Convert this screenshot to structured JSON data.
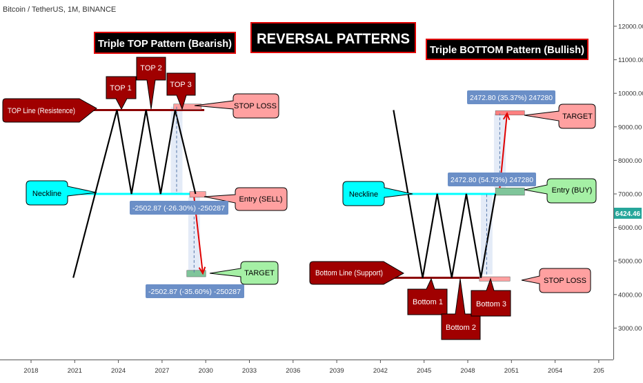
{
  "symbol": "Bitcoin / TetherUS, 1M, BINANCE",
  "last_price": "6424.46",
  "colors": {
    "accent_teal": "#26a69a",
    "dark_red": "#8b0000",
    "pink": "#ffa0a0",
    "light_green": "#a5f0a5",
    "cyan": "#00ffff",
    "label_blue": "#6b8fc7",
    "black": "#000000"
  },
  "chart_data": {
    "type": "line",
    "x_ticks": [
      "2018",
      "2021",
      "2024",
      "2027",
      "2030",
      "2033",
      "2036",
      "2039",
      "2042",
      "2045",
      "2048",
      "2051",
      "2054",
      "205"
    ],
    "y_ticks": [
      "12000.00",
      "11000.00",
      "10000.00",
      "9000.00",
      "8000.00",
      "7000.00",
      "6000.00",
      "5000.00",
      "4000.00",
      "3000.00"
    ],
    "ylim": [
      2000,
      12700
    ],
    "grid": false,
    "current_price": 6424.46,
    "series": [
      {
        "points": [
          [
            2020.9,
            4500
          ],
          [
            2023.9,
            9500
          ],
          [
            2024.9,
            7000
          ],
          [
            2025.9,
            9500
          ],
          [
            2026.9,
            7000
          ],
          [
            2027.9,
            9500
          ],
          [
            2029.3,
            7000
          ]
        ]
      },
      {
        "points": [
          [
            2042.9,
            9500
          ],
          [
            2044.9,
            4500
          ],
          [
            2045.9,
            7000
          ],
          [
            2046.9,
            4500
          ],
          [
            2047.9,
            7000
          ],
          [
            2048.9,
            4500
          ],
          [
            2049.9,
            7000
          ]
        ]
      }
    ],
    "horizontal_lines": [
      {
        "from": 2020.9,
        "to": 2029.9,
        "y": 9500,
        "color": "#8b0000"
      },
      {
        "from": 2019.9,
        "to": 2029.9,
        "y": 7000,
        "color": "#00ffff"
      },
      {
        "from": 2042.9,
        "to": 2050.9,
        "y": 7000,
        "color": "#00ffff"
      },
      {
        "from": 2042.9,
        "to": 2050.9,
        "y": 4500,
        "color": "#8b0000"
      }
    ],
    "zones": [
      {
        "x1": 2027.8,
        "x2": 2029.7,
        "y1": 9520,
        "y2": 9680,
        "color": "#ffa0a0"
      },
      {
        "x1": 2028.9,
        "x2": 2030.0,
        "y1": 6900,
        "y2": 7070,
        "color": "#ffa0a0"
      },
      {
        "x1": 2028.7,
        "x2": 2030.0,
        "y1": 4530,
        "y2": 4720,
        "color": "#7fc59a"
      },
      {
        "x1": 2048.8,
        "x2": 2050.9,
        "y1": 4400,
        "y2": 4530,
        "color": "#ffa0a0"
      },
      {
        "x1": 2049.9,
        "x2": 2051.9,
        "y1": 6960,
        "y2": 7180,
        "color": "#7fc59a"
      },
      {
        "x1": 2049.9,
        "x2": 2051.9,
        "y1": 9350,
        "y2": 9480,
        "color": "#ff8080"
      }
    ],
    "arrows": [
      {
        "x1": 2029.2,
        "y1": 6900,
        "x2": 2029.8,
        "y2": 4630
      },
      {
        "x1": 2050.2,
        "y1": 7180,
        "x2": 2050.7,
        "y2": 9400
      }
    ],
    "dashed": [
      {
        "x1": 2028.0,
        "y1": 9600,
        "x2": 2028.0,
        "y2": 7000
      },
      {
        "x1": 2029.2,
        "y1": 6900,
        "x2": 2029.2,
        "y2": 4630
      },
      {
        "x1": 2049.3,
        "y1": 4600,
        "x2": 2049.3,
        "y2": 7000
      },
      {
        "x1": 2050.2,
        "y1": 7180,
        "x2": 2050.2,
        "y2": 9400
      }
    ],
    "shades": [
      {
        "x1": 2027.6,
        "x2": 2028.4,
        "y1": 7000,
        "y2": 9600,
        "color": "#dde6f5"
      },
      {
        "x1": 2028.8,
        "x2": 2029.6,
        "y1": 4630,
        "y2": 6900,
        "color": "#dde6f5"
      },
      {
        "x1": 2048.9,
        "x2": 2049.7,
        "y1": 4600,
        "y2": 7000,
        "color": "#dde6f5"
      },
      {
        "x1": 2049.8,
        "x2": 2050.6,
        "y1": 7180,
        "y2": 9400,
        "color": "#dde6f5"
      }
    ]
  },
  "titles": {
    "main": "REVERSAL PATTERNS",
    "top_pattern": "Triple TOP Pattern (Bearish)",
    "bottom_pattern": "Triple BOTTOM Pattern (Bullish)"
  },
  "labels": {
    "top1": "TOP 1",
    "top2": "TOP 2",
    "top3": "TOP 3",
    "top_line": "TOP Line (Resistence)",
    "neckline_left": "Neckline",
    "stop_loss_left": "STOP LOSS",
    "entry_sell": "Entry (SELL)",
    "target_left": "TARGET",
    "measure_sell_1": "-2502.87 (-26.30%) -250287",
    "measure_sell_2": "-2502.87 (-35.60%) -250287",
    "neckline_right": "Neckline",
    "bottom_line": "Bottom Line (Support)",
    "bottom1": "Bottom 1",
    "bottom2": "Bottom 2",
    "bottom3": "Bottom 3",
    "stop_loss_right": "STOP LOSS",
    "entry_buy": "Entry (BUY)",
    "target_right": "TARGET",
    "measure_buy_1": "2472.80 (54.73%) 247280",
    "measure_buy_2": "2472.80 (35.37%) 247280"
  }
}
